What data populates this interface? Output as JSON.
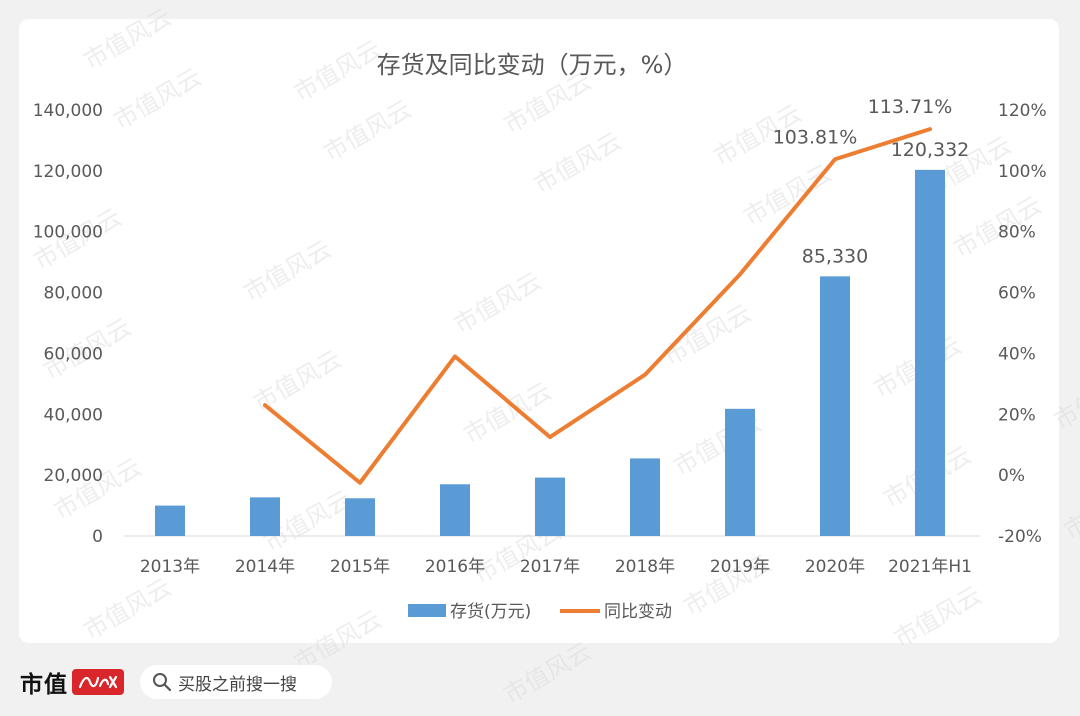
{
  "watermark_text": "市值风云",
  "chart_data": {
    "type": "bar",
    "title": "存货及同比变动（万元，%）",
    "xlabel": "",
    "ylabel": "",
    "categories": [
      "2013年",
      "2014年",
      "2015年",
      "2016年",
      "2017年",
      "2018年",
      "2019年",
      "2020年",
      "2021年H1"
    ],
    "series": [
      {
        "name": "存货(万元)",
        "type": "bar",
        "axis": "left",
        "color": "#5b9bd5",
        "values": [
          10000,
          12700,
          12400,
          17000,
          19200,
          25500,
          41800,
          85330,
          120332
        ]
      },
      {
        "name": "同比变动",
        "type": "line",
        "axis": "right",
        "color": "#ed7d31",
        "values": [
          null,
          23,
          -2.5,
          39,
          12.5,
          33,
          66,
          103.81,
          113.71
        ]
      }
    ],
    "y_left": {
      "ylim": [
        0,
        140000
      ],
      "ticks": [
        0,
        20000,
        40000,
        60000,
        80000,
        100000,
        120000,
        140000
      ],
      "tick_labels": [
        "0",
        "20,000",
        "40,000",
        "60,000",
        "80,000",
        "100,000",
        "120,000",
        "140,000"
      ]
    },
    "y_right": {
      "ylim": [
        -20,
        120
      ],
      "ticks": [
        -20,
        0,
        20,
        40,
        60,
        80,
        100,
        120
      ],
      "tick_labels": [
        "-20%",
        "0%",
        "20%",
        "40%",
        "60%",
        "80%",
        "100%",
        "120%"
      ]
    },
    "data_labels": {
      "bar": [
        {
          "index": 7,
          "text": "85,330"
        },
        {
          "index": 8,
          "text": "120,332"
        }
      ],
      "line": [
        {
          "index": 7,
          "text": "103.81%"
        },
        {
          "index": 8,
          "text": "113.71%"
        }
      ]
    },
    "grid": false,
    "legend": {
      "position": "bottom",
      "items": [
        "存货(万元)",
        "同比变动"
      ]
    }
  },
  "footer": {
    "brand": "市值",
    "brand_seal_icon": "brand-seal-calligraphy",
    "search_placeholder": "买股之前搜一搜",
    "search_icon": "search-icon"
  }
}
